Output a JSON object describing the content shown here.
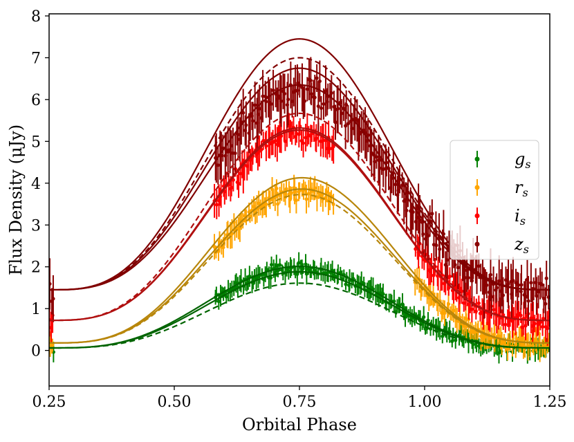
{
  "chart_data": {
    "type": "scatter",
    "title": "",
    "xlabel": "Orbital Phase",
    "ylabel": "Flux Density (μJy)",
    "xlim": [
      0.25,
      1.25
    ],
    "ylim": [
      -0.85,
      8.05
    ],
    "xticks": [
      0.25,
      0.5,
      0.75,
      1.0,
      1.25
    ],
    "xtick_labels": [
      "0.25",
      "0.50",
      "0.75",
      "1.00",
      "1.25"
    ],
    "yticks": [
      0,
      1,
      2,
      3,
      4,
      5,
      6,
      7,
      8
    ],
    "ytick_labels": [
      "0",
      "1",
      "2",
      "3",
      "4",
      "5",
      "6",
      "7",
      "8"
    ],
    "legend_position": "right",
    "series": [
      {
        "name": "g",
        "subscript": "s",
        "color": "#008000",
        "model_color": "#006400",
        "base": 0.06,
        "peak_phase": 0.75,
        "models": [
          {
            "amplitude": 1.95,
            "style": "solid"
          },
          {
            "amplitude": 1.82,
            "style": "solid"
          },
          {
            "amplitude": 1.55,
            "style": "dashed"
          }
        ],
        "data_ranges": [
          [
            0.25,
            0.26
          ],
          [
            0.58,
            0.82
          ],
          [
            0.82,
            1.25
          ]
        ],
        "data_amplitude": 1.9,
        "err": 0.2
      },
      {
        "name": "r",
        "subscript": "s",
        "color": "#ffa500",
        "model_color": "#b8860b",
        "base": 0.18,
        "peak_phase": 0.755,
        "models": [
          {
            "amplitude": 3.95,
            "style": "solid"
          },
          {
            "amplitude": 3.68,
            "style": "solid"
          },
          {
            "amplitude": 3.55,
            "style": "dashed"
          }
        ],
        "data_ranges": [
          [
            0.25,
            0.26
          ],
          [
            0.58,
            0.82
          ],
          [
            0.98,
            1.25
          ]
        ],
        "data_amplitude": 3.65,
        "err": 0.25
      },
      {
        "name": "i",
        "subscript": "s",
        "color": "#ff0000",
        "model_color": "#b01010",
        "base": 0.72,
        "peak_phase": 0.75,
        "models": [
          {
            "amplitude": 4.6,
            "style": "solid"
          },
          {
            "amplitude": 4.95,
            "style": "dashed"
          },
          {
            "amplitude": 4.55,
            "style": "solid"
          }
        ],
        "data_ranges": [
          [
            0.25,
            0.26
          ],
          [
            0.58,
            0.82
          ],
          [
            0.98,
            1.25
          ]
        ],
        "data_amplitude": 4.45,
        "err": 0.3
      },
      {
        "name": "z",
        "subscript": "s",
        "color": "#8b0000",
        "model_color": "#800000",
        "base": 1.45,
        "peak_phase": 0.75,
        "models": [
          {
            "amplitude": 6.0,
            "style": "solid"
          },
          {
            "amplitude": 5.55,
            "style": "dashed"
          },
          {
            "amplitude": 5.3,
            "style": "solid"
          },
          {
            "amplitude": 4.9,
            "style": "solid"
          }
        ],
        "data_ranges": [
          [
            0.25,
            0.26
          ],
          [
            0.58,
            0.82
          ],
          [
            0.82,
            1.25
          ]
        ],
        "data_amplitude": 4.75,
        "err": 0.45
      }
    ]
  }
}
